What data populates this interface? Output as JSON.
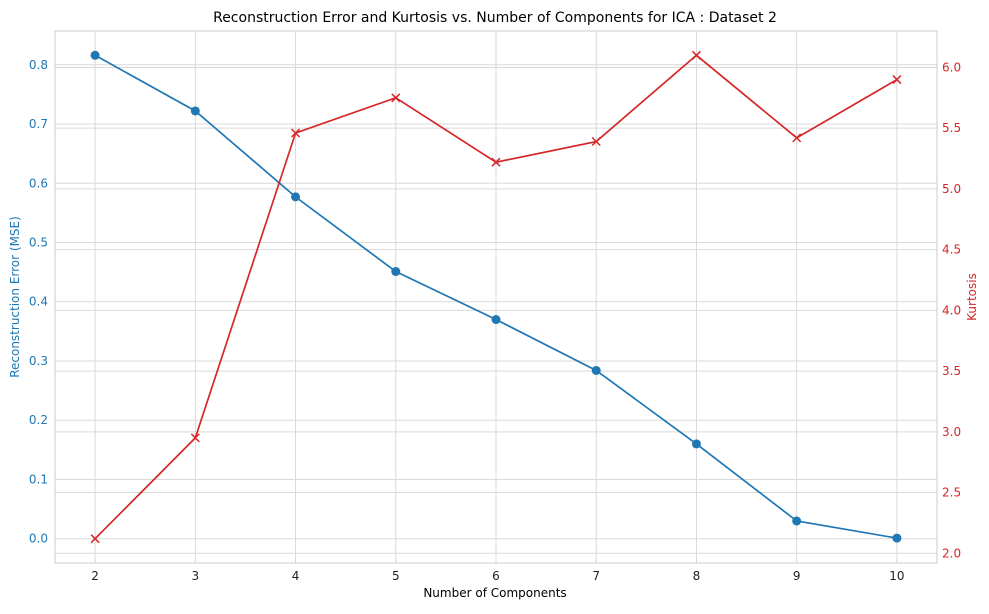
{
  "chart_data": {
    "type": "line",
    "title": "Reconstruction Error and Kurtosis vs. Number of Components for ICA :  Dataset 2",
    "xlabel": "Number of Components",
    "x": [
      2,
      3,
      4,
      5,
      6,
      7,
      8,
      9,
      10
    ],
    "xlim": [
      1.6,
      10.4
    ],
    "x_ticks": [
      "2",
      "3",
      "4",
      "5",
      "6",
      "7",
      "8",
      "9",
      "10"
    ],
    "grid": true,
    "y_left": {
      "label": "Reconstruction Error (MSE)",
      "color": "#1f77b4",
      "lim": [
        -0.041,
        0.857
      ],
      "ticks": [
        "0.0",
        "0.1",
        "0.2",
        "0.3",
        "0.4",
        "0.5",
        "0.6",
        "0.7",
        "0.8"
      ],
      "tick_values": [
        0.0,
        0.1,
        0.2,
        0.3,
        0.4,
        0.5,
        0.6,
        0.7,
        0.8
      ]
    },
    "y_right": {
      "label": "Kurtosis",
      "color": "#d62728",
      "lim": [
        1.92,
        6.3
      ],
      "ticks": [
        "2.0",
        "2.5",
        "3.0",
        "3.5",
        "4.0",
        "4.5",
        "5.0",
        "5.5",
        "6.0"
      ],
      "tick_values": [
        2.0,
        2.5,
        3.0,
        3.5,
        4.0,
        4.5,
        5.0,
        5.5,
        6.0
      ]
    },
    "series": [
      {
        "axis": "left",
        "marker": "circle",
        "color": "#1f77b4",
        "values": [
          0.816,
          0.722,
          0.577,
          0.451,
          0.37,
          0.284,
          0.16,
          0.03,
          0.001
        ]
      },
      {
        "axis": "right",
        "marker": "x",
        "color": "#d62728",
        "values": [
          2.12,
          2.95,
          5.46,
          5.75,
          5.22,
          5.39,
          6.1,
          5.42,
          5.9
        ]
      }
    ]
  }
}
